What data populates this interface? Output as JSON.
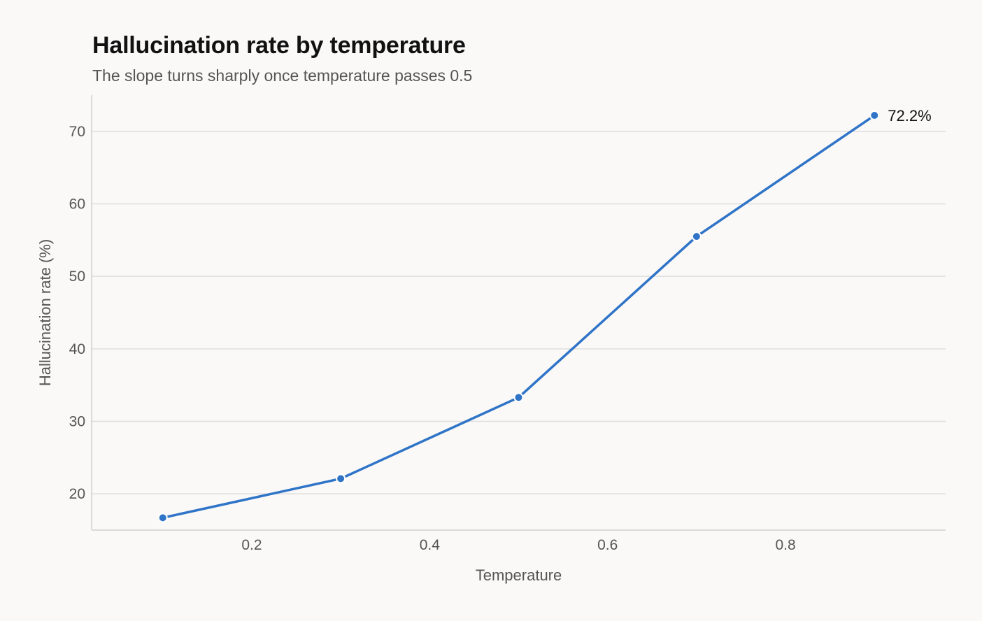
{
  "chart_data": {
    "type": "line",
    "title": "Hallucination rate by temperature",
    "subtitle": "The slope turns sharply once temperature passes 0.5",
    "xlabel": "Temperature",
    "ylabel": "Hallucination rate (%)",
    "x": [
      0.1,
      0.3,
      0.5,
      0.7,
      0.9
    ],
    "series": [
      {
        "values": [
          16.7,
          22.1,
          33.3,
          55.5,
          72.2
        ],
        "color": "#2f74c7"
      }
    ],
    "x_ticks": [
      "0.2",
      "0.4",
      "0.6",
      "0.8"
    ],
    "y_ticks": [
      "20",
      "30",
      "40",
      "50",
      "60",
      "70"
    ],
    "xlim": [
      0.02,
      0.98
    ],
    "ylim": [
      15,
      75
    ],
    "grid": "horizontal",
    "annotations": [
      {
        "x": 0.9,
        "y": 72.2,
        "text": "72.2%"
      }
    ]
  }
}
